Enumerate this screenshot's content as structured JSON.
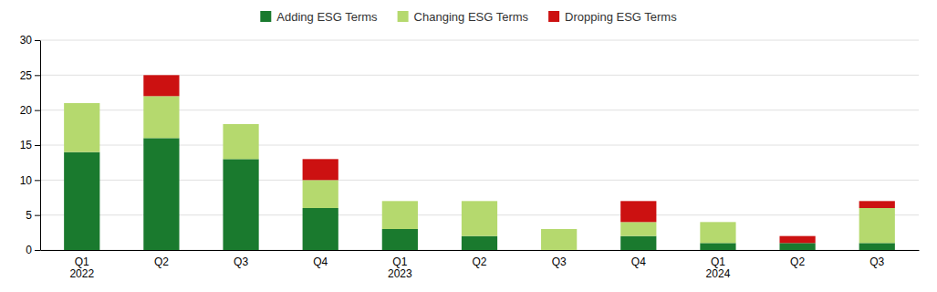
{
  "chart_data": {
    "type": "bar",
    "stacked": true,
    "categories": [
      "Q1\n2022",
      "Q2",
      "Q3",
      "Q4",
      "Q1\n2023",
      "Q2",
      "Q3",
      "Q4",
      "Q1\n2024",
      "Q2",
      "Q3"
    ],
    "series": [
      {
        "name": "Adding ESG Terms",
        "color": "#1a7a2e",
        "values": [
          14,
          16,
          13,
          6,
          3,
          2,
          0,
          2,
          1,
          1,
          1
        ]
      },
      {
        "name": "Changing ESG Terms",
        "color": "#b5d96e",
        "values": [
          7,
          6,
          5,
          4,
          4,
          5,
          3,
          2,
          3,
          0,
          5
        ]
      },
      {
        "name": "Dropping ESG Terms",
        "color": "#cc1111",
        "values": [
          0,
          3,
          0,
          3,
          0,
          0,
          0,
          3,
          0,
          1,
          1
        ]
      }
    ],
    "ylim": [
      0,
      30
    ],
    "yticks": [
      0,
      5,
      10,
      15,
      20,
      25,
      30
    ],
    "grid": true,
    "legend": "top"
  }
}
